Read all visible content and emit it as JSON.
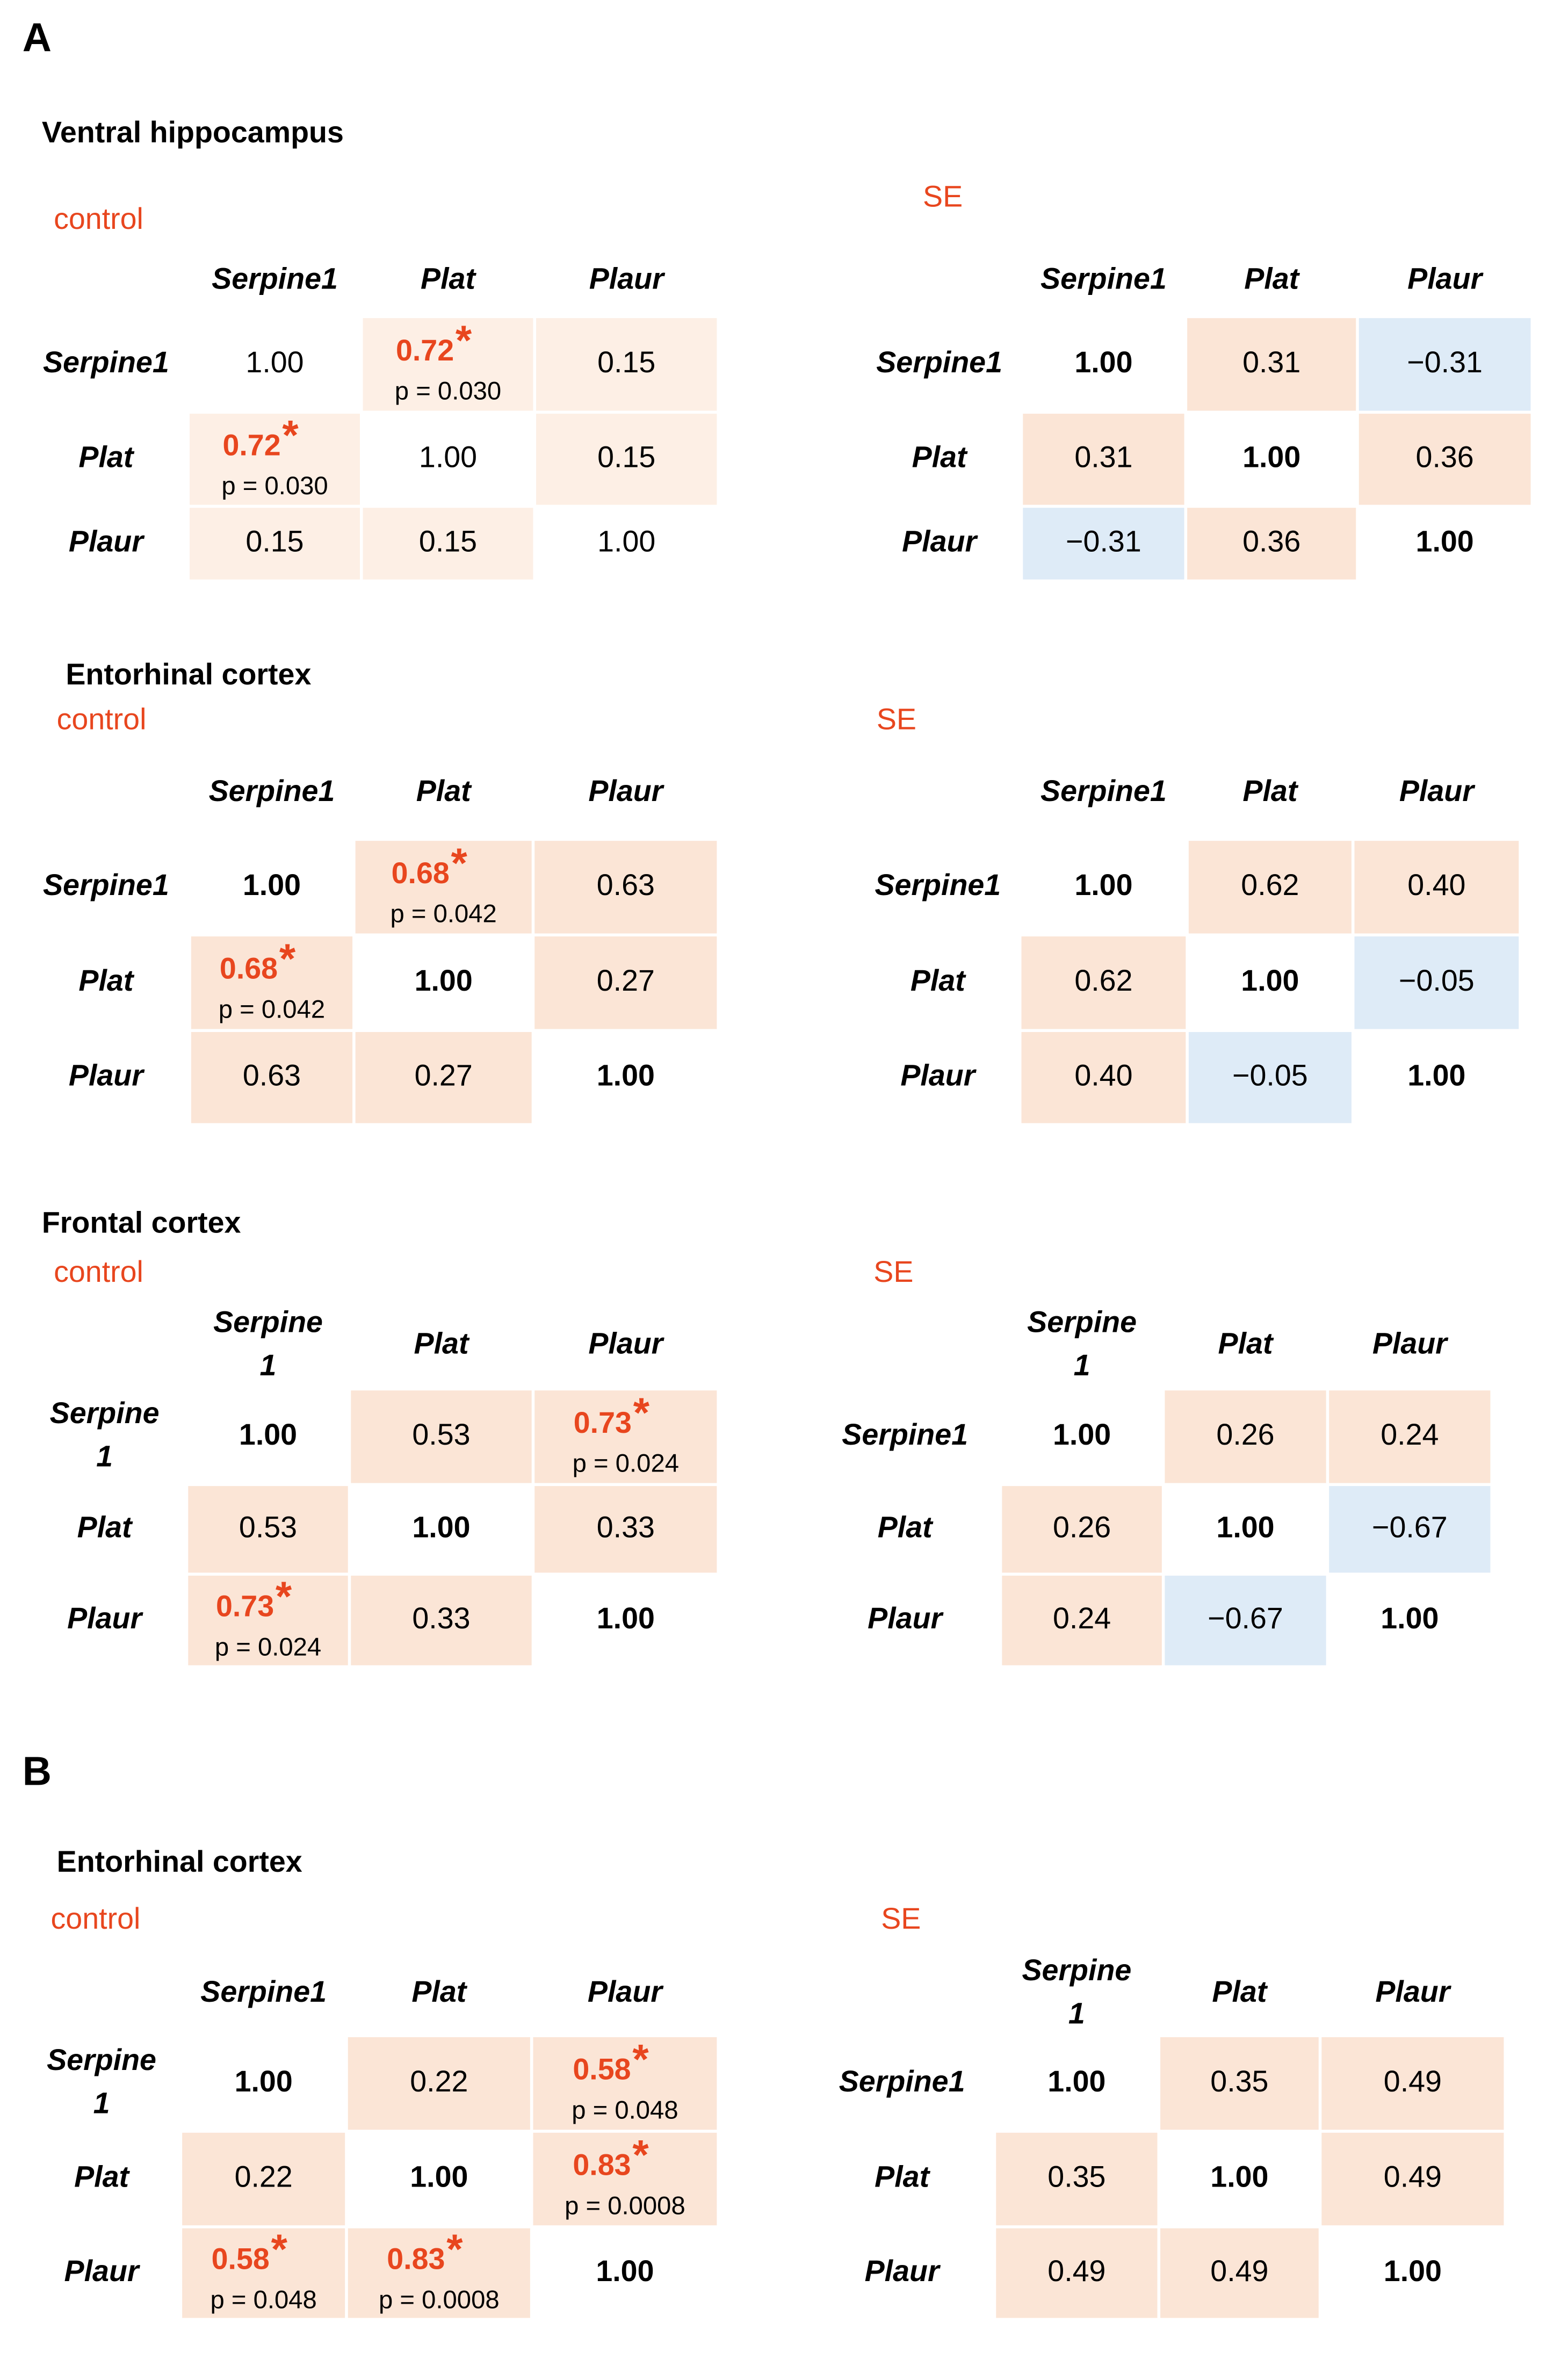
{
  "panels": [
    {
      "label": "A",
      "sections": [
        {
          "title": "Ventral hippocampus",
          "groups": [
            {
              "label": "control",
              "bold_diagonal": false,
              "pos_color": "#fdefe5",
              "columns": [
                "Serpine1",
                "Plat",
                "Plaur"
              ],
              "rows": [
                "Serpine1",
                "Plat",
                "Plaur"
              ],
              "cells": [
                [
                  {
                    "r": "1.00"
                  },
                  {
                    "r": "0.72",
                    "star": "*",
                    "p": "p = 0.030"
                  },
                  {
                    "r": "0.15"
                  }
                ],
                [
                  {
                    "r": "0.72",
                    "star": "*",
                    "p": "p = 0.030"
                  },
                  {
                    "r": "1.00"
                  },
                  {
                    "r": "0.15"
                  }
                ],
                [
                  {
                    "r": "0.15"
                  },
                  {
                    "r": "0.15"
                  },
                  {
                    "r": "1.00"
                  }
                ]
              ]
            },
            {
              "label": "SE",
              "bold_diagonal": true,
              "pos_color": "#fbe5d6",
              "columns": [
                "Serpine1",
                "Plat",
                "Plaur"
              ],
              "rows": [
                "Serpine1",
                "Plat",
                "Plaur"
              ],
              "cells": [
                [
                  {
                    "r": "1.00"
                  },
                  {
                    "r": "0.31"
                  },
                  {
                    "r": "−0.31"
                  }
                ],
                [
                  {
                    "r": "0.31"
                  },
                  {
                    "r": "1.00"
                  },
                  {
                    "r": "0.36"
                  }
                ],
                [
                  {
                    "r": "−0.31"
                  },
                  {
                    "r": "0.36"
                  },
                  {
                    "r": "1.00"
                  }
                ]
              ]
            }
          ]
        },
        {
          "title": "Entorhinal cortex",
          "groups": [
            {
              "label": "control",
              "bold_diagonal": true,
              "pos_color": "#fbe5d6",
              "columns": [
                "Serpine1",
                "Plat",
                "Plaur"
              ],
              "rows": [
                "Serpine1",
                "Plat",
                "Plaur"
              ],
              "cells": [
                [
                  {
                    "r": "1.00"
                  },
                  {
                    "r": "0.68",
                    "star": "*",
                    "p": "p = 0.042"
                  },
                  {
                    "r": "0.63"
                  }
                ],
                [
                  {
                    "r": "0.68",
                    "star": "*",
                    "p": "p = 0.042"
                  },
                  {
                    "r": "1.00"
                  },
                  {
                    "r": "0.27"
                  }
                ],
                [
                  {
                    "r": "0.63"
                  },
                  {
                    "r": "0.27"
                  },
                  {
                    "r": "1.00"
                  }
                ]
              ]
            },
            {
              "label": "SE",
              "bold_diagonal": true,
              "pos_color": "#fbe5d6",
              "columns": [
                "Serpine1",
                "Plat",
                "Plaur"
              ],
              "rows": [
                "Serpine1",
                "Plat",
                "Plaur"
              ],
              "cells": [
                [
                  {
                    "r": "1.00"
                  },
                  {
                    "r": "0.62"
                  },
                  {
                    "r": "0.40"
                  }
                ],
                [
                  {
                    "r": "0.62"
                  },
                  {
                    "r": "1.00"
                  },
                  {
                    "r": "−0.05"
                  }
                ],
                [
                  {
                    "r": "0.40"
                  },
                  {
                    "r": "−0.05"
                  },
                  {
                    "r": "1.00"
                  }
                ]
              ]
            }
          ]
        },
        {
          "title": "Frontal cortex",
          "groups": [
            {
              "label": "control",
              "bold_diagonal": true,
              "pos_color": "#fbe5d6",
              "columns": [
                "Serpine\n1",
                "Plat",
                "Plaur"
              ],
              "rows": [
                "Serpine\n1",
                "Plat",
                "Plaur"
              ],
              "cells": [
                [
                  {
                    "r": "1.00"
                  },
                  {
                    "r": "0.53"
                  },
                  {
                    "r": "0.73",
                    "star": "*",
                    "p": "p = 0.024"
                  }
                ],
                [
                  {
                    "r": "0.53"
                  },
                  {
                    "r": "1.00"
                  },
                  {
                    "r": "0.33"
                  }
                ],
                [
                  {
                    "r": "0.73",
                    "star": "*",
                    "p": "p = 0.024"
                  },
                  {
                    "r": "0.33"
                  },
                  {
                    "r": "1.00"
                  }
                ]
              ]
            },
            {
              "label": "SE",
              "bold_diagonal": true,
              "pos_color": "#fbe5d6",
              "columns": [
                "Serpine\n1",
                "Plat",
                "Plaur"
              ],
              "rows": [
                "Serpine1",
                "Plat",
                "Plaur"
              ],
              "cells": [
                [
                  {
                    "r": "1.00"
                  },
                  {
                    "r": "0.26"
                  },
                  {
                    "r": "0.24"
                  }
                ],
                [
                  {
                    "r": "0.26"
                  },
                  {
                    "r": "1.00"
                  },
                  {
                    "r": "−0.67"
                  }
                ],
                [
                  {
                    "r": "0.24"
                  },
                  {
                    "r": "−0.67"
                  },
                  {
                    "r": "1.00"
                  }
                ]
              ]
            }
          ]
        }
      ]
    },
    {
      "label": "B",
      "sections": [
        {
          "title": "Entorhinal cortex",
          "groups": [
            {
              "label": "control",
              "bold_diagonal": true,
              "pos_color": "#fbe5d6",
              "columns": [
                "Serpine1",
                "Plat",
                "Plaur"
              ],
              "rows": [
                "Serpine\n1",
                "Plat",
                "Plaur"
              ],
              "cells": [
                [
                  {
                    "r": "1.00"
                  },
                  {
                    "r": "0.22"
                  },
                  {
                    "r": "0.58",
                    "star": "*",
                    "p": "p = 0.048"
                  }
                ],
                [
                  {
                    "r": "0.22"
                  },
                  {
                    "r": "1.00"
                  },
                  {
                    "r": "0.83",
                    "star": "*",
                    "p": "p = 0.0008"
                  }
                ],
                [
                  {
                    "r": "0.58",
                    "star": "*",
                    "p": "p = 0.048"
                  },
                  {
                    "r": "0.83",
                    "star": "*",
                    "p": "p = 0.0008"
                  },
                  {
                    "r": "1.00"
                  }
                ]
              ]
            },
            {
              "label": "SE",
              "bold_diagonal": true,
              "pos_color": "#fbe5d6",
              "columns": [
                "Serpine\n1",
                "Plat",
                "Plaur"
              ],
              "rows": [
                "Serpine1",
                "Plat",
                "Plaur"
              ],
              "cells": [
                [
                  {
                    "r": "1.00"
                  },
                  {
                    "r": "0.35"
                  },
                  {
                    "r": "0.49"
                  }
                ],
                [
                  {
                    "r": "0.35"
                  },
                  {
                    "r": "1.00"
                  },
                  {
                    "r": "0.49"
                  }
                ],
                [
                  {
                    "r": "0.49"
                  },
                  {
                    "r": "0.49"
                  },
                  {
                    "r": "1.00"
                  }
                ]
              ]
            }
          ]
        }
      ]
    }
  ],
  "neg_color": "#deebf7"
}
